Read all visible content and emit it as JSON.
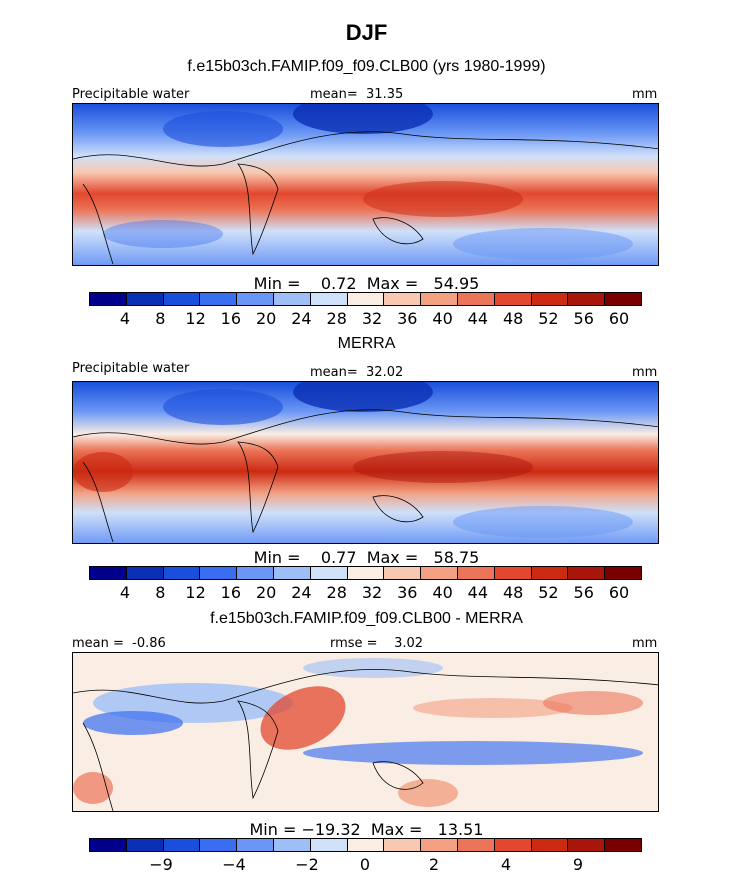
{
  "title": "DJF",
  "panels": [
    {
      "heading": "f.e15b03ch.FAMIP.f09_f09.CLB00 (yrs 1980-1999)",
      "variable": "Precipitable water",
      "center_stat": "mean=  31.35",
      "units": "mm",
      "minmax": "Min =    0.72  Max =   54.95",
      "colorbar_ticks": [
        "4",
        "8",
        "12",
        "16",
        "20",
        "24",
        "28",
        "32",
        "36",
        "40",
        "44",
        "48",
        "52",
        "56",
        "60"
      ]
    },
    {
      "heading": "MERRA",
      "variable": "Precipitable water",
      "center_stat": "mean=  32.02",
      "units": "mm",
      "minmax": "Min =    0.77  Max =   58.75",
      "colorbar_ticks": [
        "4",
        "8",
        "12",
        "16",
        "20",
        "24",
        "28",
        "32",
        "36",
        "40",
        "44",
        "48",
        "52",
        "56",
        "60"
      ]
    },
    {
      "heading": "f.e15b03ch.FAMIP.f09_f09.CLB00 - MERRA",
      "variable": "mean =  -0.86",
      "center_stat": "rmse =    3.02",
      "units": "mm",
      "minmax": "Min = −19.32  Max =   13.51",
      "colorbar_ticks": [
        "−9",
        "−4",
        "−2",
        "0",
        "2",
        "4",
        "9"
      ]
    }
  ],
  "colors": {
    "colorbar_abs": [
      "#00008c",
      "#0a2fb4",
      "#1a4fdc",
      "#3a6ef0",
      "#6a97f5",
      "#9ebef8",
      "#cfe0f9",
      "#f9ede4",
      "#f8c8b0",
      "#f3a083",
      "#ec7458",
      "#e2482f",
      "#cc2a12",
      "#a8150a",
      "#7a0000"
    ],
    "colorbar_diff": [
      "#00008c",
      "#0a2fb4",
      "#1a4fdc",
      "#3a6ef0",
      "#6a97f5",
      "#9ebef8",
      "#cfe0f9",
      "#f9ede4",
      "#f8c8b0",
      "#f3a083",
      "#ec7458",
      "#e2482f",
      "#cc2a12",
      "#a8150a",
      "#7a0000"
    ]
  },
  "chart_data": [
    {
      "type": "heatmap",
      "title": "f.e15b03ch.FAMIP.f09_f09.CLB00 (yrs 1980-1999)",
      "variable": "Precipitable water",
      "units": "mm",
      "mean": 31.35,
      "min": 0.72,
      "max": 54.95,
      "levels": [
        4,
        8,
        12,
        16,
        20,
        24,
        28,
        32,
        36,
        40,
        44,
        48,
        52,
        56,
        60
      ]
    },
    {
      "type": "heatmap",
      "title": "MERRA",
      "variable": "Precipitable water",
      "units": "mm",
      "mean": 32.02,
      "min": 0.77,
      "max": 58.75,
      "levels": [
        4,
        8,
        12,
        16,
        20,
        24,
        28,
        32,
        36,
        40,
        44,
        48,
        52,
        56,
        60
      ]
    },
    {
      "type": "heatmap",
      "title": "f.e15b03ch.FAMIP.f09_f09.CLB00 - MERRA",
      "units": "mm",
      "mean": -0.86,
      "rmse": 3.02,
      "min": -19.32,
      "max": 13.51,
      "tick_labels": [
        -9,
        -4,
        -2,
        0,
        2,
        4,
        9
      ]
    }
  ]
}
